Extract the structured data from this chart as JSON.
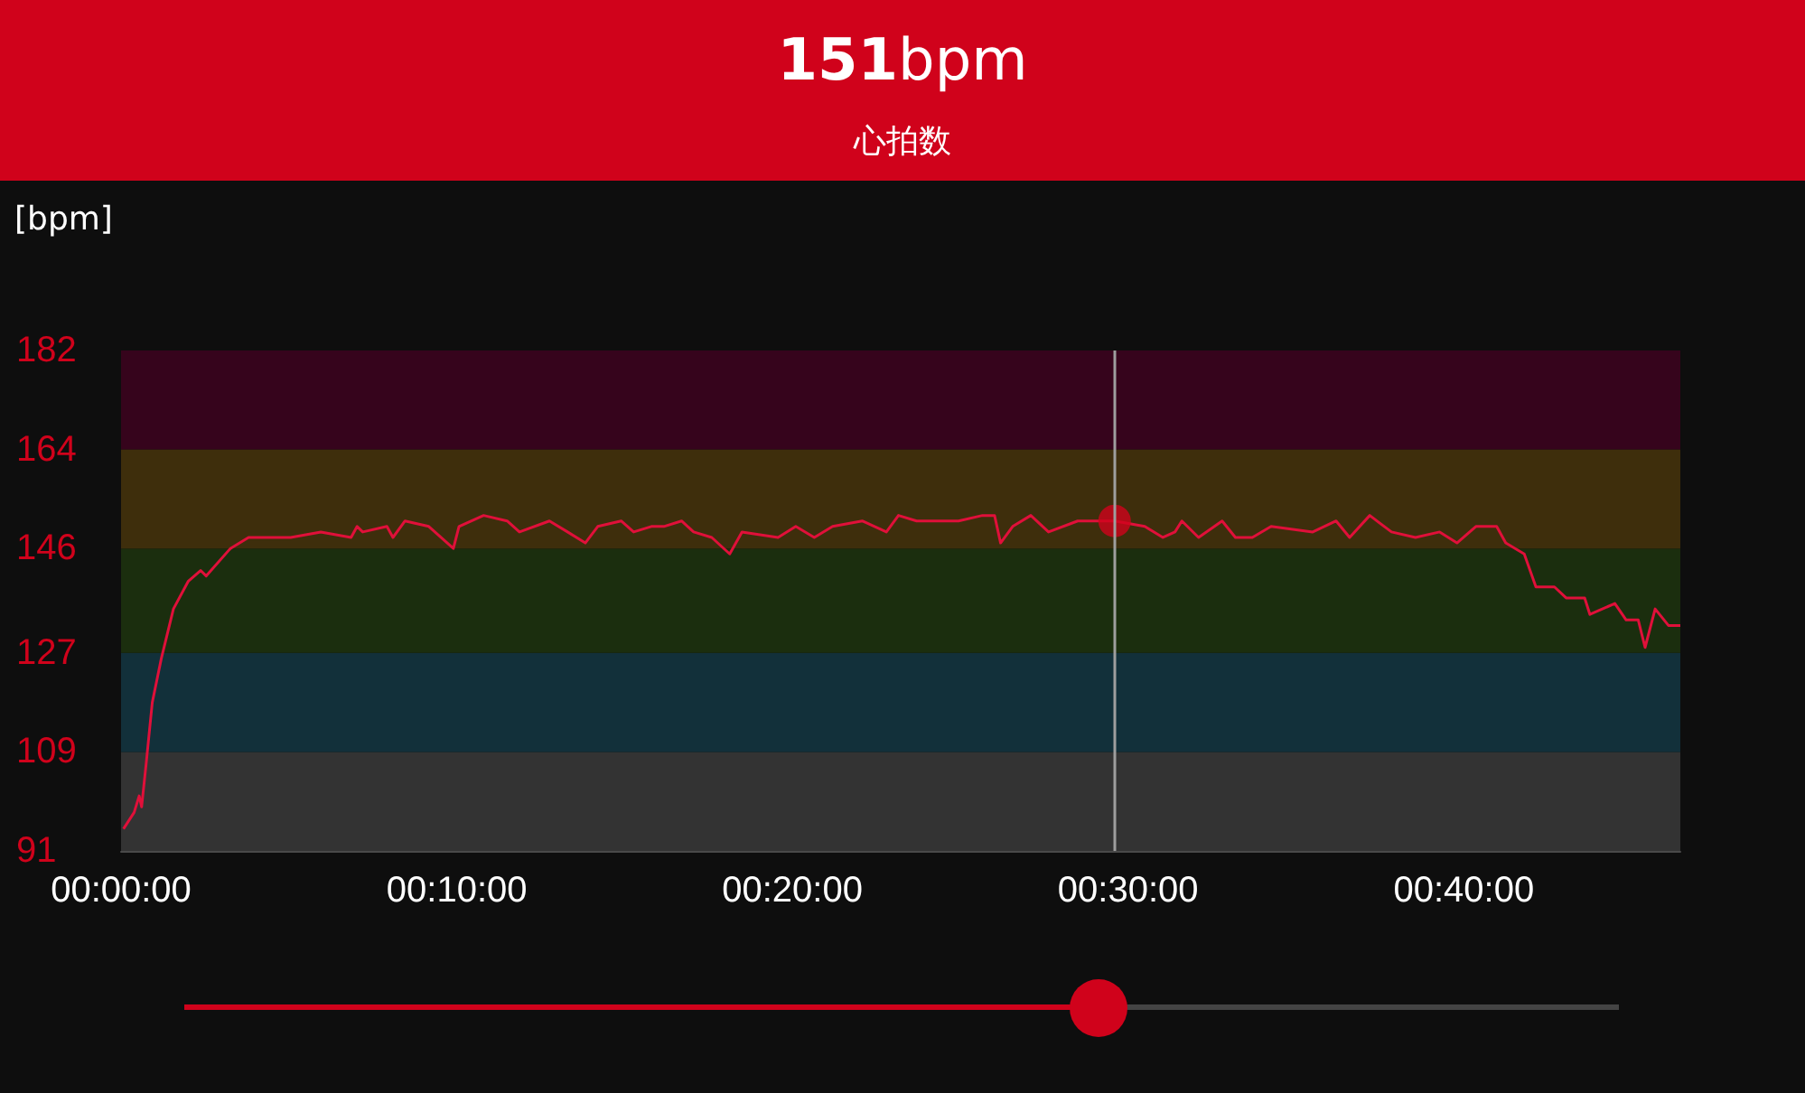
{
  "chart_data": {
    "type": "line",
    "title": "151bpm",
    "subtitle": "心拍数",
    "ylabel": "[bpm]",
    "xlim": [
      0,
      0.7742
    ],
    "ylim": [
      91,
      182
    ],
    "xticks": [
      {
        "value": 0,
        "label": "00:00:00"
      },
      {
        "value": 0.1667,
        "label": "00:10:00"
      },
      {
        "value": 0.3333,
        "label": "00:20:00"
      },
      {
        "value": 0.5,
        "label": "00:30:00"
      },
      {
        "value": 0.6667,
        "label": "00:40:00"
      }
    ],
    "yticks": [
      91,
      109,
      127,
      146,
      164,
      182
    ],
    "marker": "none",
    "line_style": "solid",
    "bands": [
      {
        "axis": "y",
        "from": 91,
        "to": 109,
        "color": "#333333"
      },
      {
        "axis": "y",
        "from": 109,
        "to": 127,
        "color": "#12303a"
      },
      {
        "axis": "y",
        "from": 127,
        "to": 146,
        "color": "#1b2e0e"
      },
      {
        "axis": "y",
        "from": 146,
        "to": 164,
        "color": "#3e2e0c"
      },
      {
        "axis": "y",
        "from": 164,
        "to": 182,
        "color": "#36041c"
      }
    ],
    "ref_lines": [
      {
        "axis": "x",
        "value": 0.4933,
        "color": "#9e9e9e"
      }
    ],
    "series": [
      {
        "type": "line",
        "color": "#e0103a",
        "x": [
          0.0012,
          0.0065,
          0.009,
          0.0102,
          0.0125,
          0.0155,
          0.02,
          0.026,
          0.0333,
          0.0395,
          0.0423,
          0.0543,
          0.0633,
          0.075,
          0.0842,
          0.0992,
          0.1142,
          0.1172,
          0.12,
          0.132,
          0.135,
          0.141,
          0.1528,
          0.165,
          0.1678,
          0.18,
          0.1917,
          0.1978,
          0.2127,
          0.2217,
          0.2305,
          0.2367,
          0.2483,
          0.2545,
          0.2633,
          0.2695,
          0.2783,
          0.2843,
          0.2933,
          0.3022,
          0.3083,
          0.3262,
          0.335,
          0.3442,
          0.3533,
          0.368,
          0.38,
          0.386,
          0.395,
          0.4158,
          0.4277,
          0.4337,
          0.4367,
          0.4427,
          0.4517,
          0.4605,
          0.475,
          0.4933,
          0.5083,
          0.5173,
          0.5233,
          0.5267,
          0.535,
          0.5467,
          0.5533,
          0.5617,
          0.571,
          0.5917,
          0.6033,
          0.61,
          0.62,
          0.6308,
          0.6427,
          0.6547,
          0.6633,
          0.6727,
          0.683,
          0.6875,
          0.6967,
          0.7025,
          0.7117,
          0.7175,
          0.7267,
          0.7293,
          0.7417,
          0.7473,
          0.7533,
          0.7567,
          0.7617,
          0.7683,
          0.7742
        ],
        "values": [
          95,
          98,
          101,
          99,
          107,
          118,
          126,
          135,
          140,
          142,
          141,
          146,
          148,
          148,
          148,
          149,
          148,
          150,
          149,
          150,
          148,
          151,
          150,
          146,
          150,
          152,
          151,
          149,
          151,
          149,
          147,
          150,
          151,
          149,
          150,
          150,
          151,
          149,
          148,
          145,
          149,
          148,
          150,
          148,
          150,
          151,
          149,
          152,
          151,
          151,
          152,
          152,
          147,
          150,
          152,
          149,
          151,
          151,
          150,
          148,
          149,
          151,
          148,
          151,
          148,
          148,
          150,
          149,
          151,
          148,
          152,
          149,
          148,
          149,
          147,
          150,
          150,
          147,
          145,
          139,
          139,
          137,
          137,
          134,
          136,
          133,
          133,
          128,
          135,
          132,
          132
        ]
      },
      {
        "type": "scatter",
        "marker": "circle",
        "color": "#d0021b",
        "x": [
          0.4933
        ],
        "values": [
          151
        ]
      }
    ]
  }
}
